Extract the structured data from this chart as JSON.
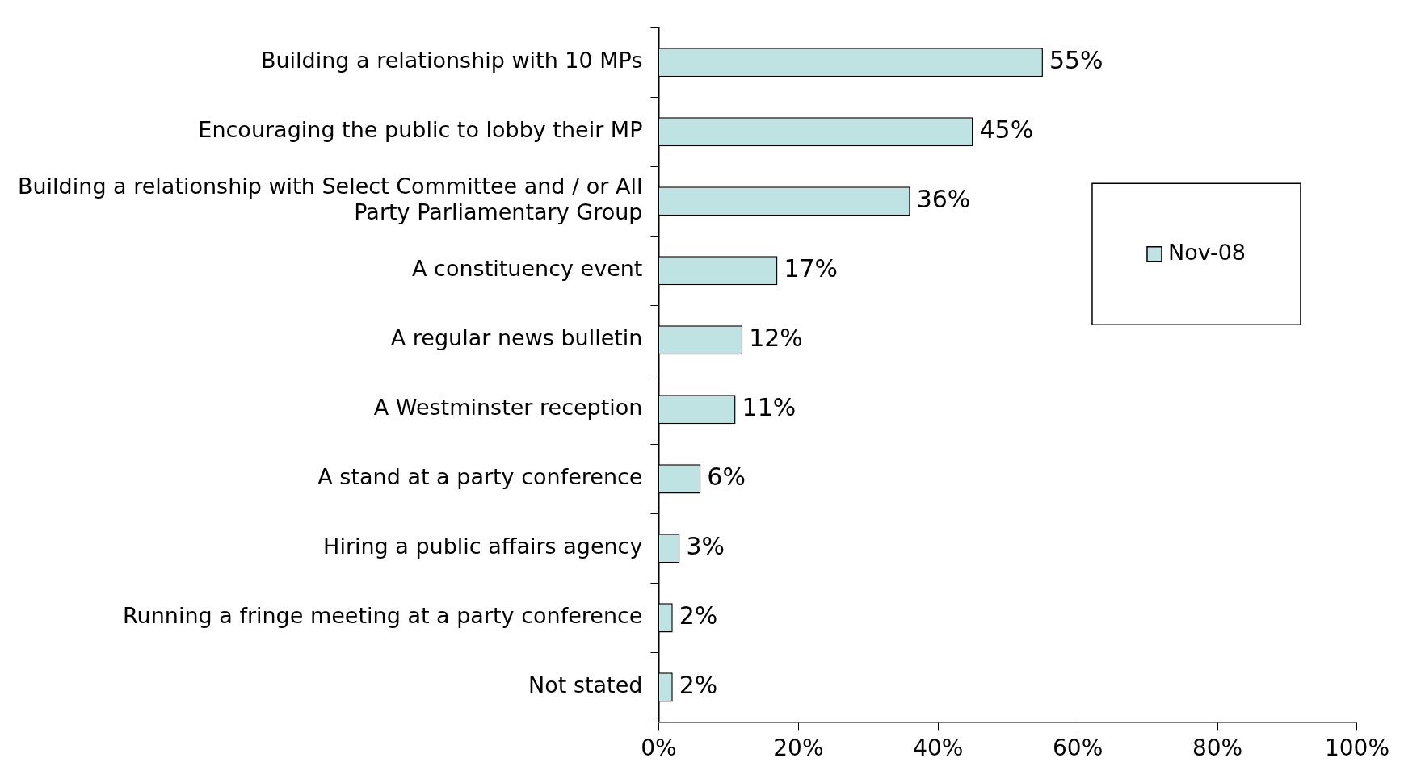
{
  "chart_data": {
    "type": "bar",
    "orientation": "horizontal",
    "categories": [
      "Building a relationship with 10 MPs",
      "Encouraging the public to lobby their MP",
      "Building a relationship with Select Committee and / or All Party Parliamentary Group",
      "A constituency event",
      "A regular news bulletin",
      "A Westminster reception",
      "A stand at a party conference",
      "Hiring a public affairs agency",
      "Running a fringe meeting at a party conference",
      "Not stated"
    ],
    "series": [
      {
        "name": "Nov-08",
        "color": "#bfe3e3",
        "values": [
          55,
          45,
          36,
          17,
          12,
          11,
          6,
          3,
          2,
          2
        ],
        "value_labels": [
          "55%",
          "45%",
          "36%",
          "17%",
          "12%",
          "11%",
          "6%",
          "3%",
          "2%",
          "2%"
        ]
      }
    ],
    "xlim": [
      0,
      100
    ],
    "xticks": [
      {
        "value": 0,
        "label": "0%"
      },
      {
        "value": 20,
        "label": "20%"
      },
      {
        "value": 40,
        "label": "40%"
      },
      {
        "value": 60,
        "label": "60%"
      },
      {
        "value": 80,
        "label": "80%"
      },
      {
        "value": 100,
        "label": "100%"
      }
    ],
    "grid": false,
    "legend": "top right"
  }
}
